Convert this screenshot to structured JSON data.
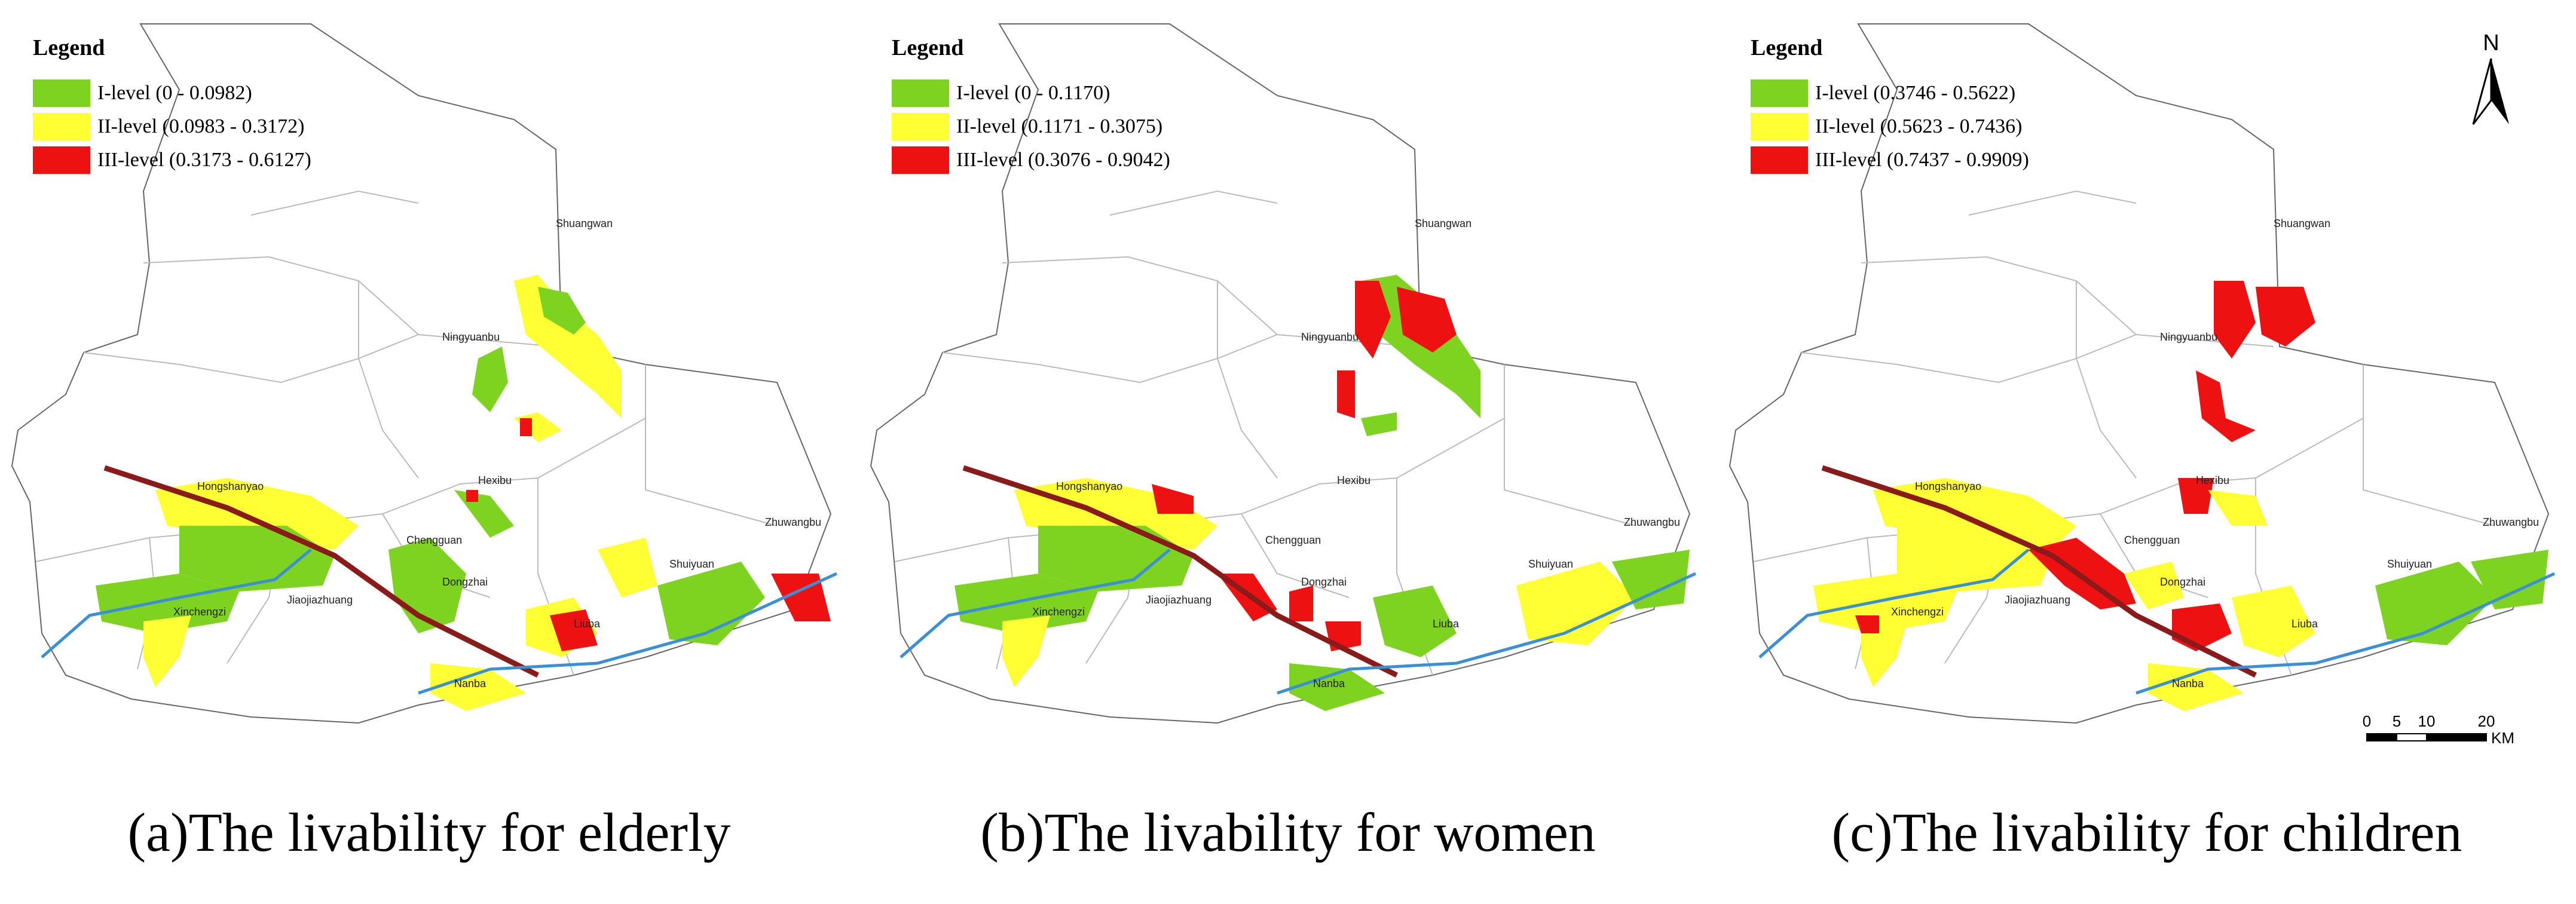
{
  "colors": {
    "level1": "#7ed321",
    "level2": "#ffff33",
    "level3": "#ee1111",
    "road": "#8b1a1a",
    "river": "#3a8fd6",
    "boundary": "#555555"
  },
  "panels": [
    {
      "caption": "(a)The livability for elderly",
      "legend": {
        "title": "Legend",
        "items": [
          {
            "label": "I-level (0 - 0.0982)"
          },
          {
            "label": "II-level (0.0983 - 0.3172)"
          },
          {
            "label": "III-level (0.3173 - 0.6127)"
          }
        ]
      },
      "places": [
        "Shuangwan",
        "Ningyuanbu",
        "Hongshanyao",
        "Hexibu",
        "Chengguan",
        "Dongzhai",
        "Jiaojiazhuang",
        "Xinchengzi",
        "Shuiyuan",
        "Zhuwangbu",
        "Liuba",
        "Nanba"
      ]
    },
    {
      "caption": "(b)The livability for women",
      "legend": {
        "title": "Legend",
        "items": [
          {
            "label": "I-level (0 - 0.1170)"
          },
          {
            "label": "II-level (0.1171 - 0.3075)"
          },
          {
            "label": "III-level (0.3076 - 0.9042)"
          }
        ]
      },
      "places": [
        "Shuangwan",
        "Ningyuanbu",
        "Hongshanyao",
        "Hexibu",
        "Chengguan",
        "Dongzhai",
        "Jiaojiazhuang",
        "Xinchengzi",
        "Shuiyuan",
        "Zhuwangbu",
        "Liuba",
        "Nanba"
      ]
    },
    {
      "caption": "(c)The livability for children",
      "legend": {
        "title": "Legend",
        "items": [
          {
            "label": "I-level (0.3746 - 0.5622)"
          },
          {
            "label": "II-level (0.5623 - 0.7436)"
          },
          {
            "label": "III-level (0.7437 - 0.9909)"
          }
        ]
      },
      "places": [
        "Shuangwan",
        "Ningyuanbu",
        "Hongshanyao",
        "Hexibu",
        "Chengguan",
        "Dongzhai",
        "Jiaojiazhuang",
        "Xinchengzi",
        "Shuiyuan",
        "Zhuwangbu",
        "Liuba",
        "Nanba"
      ]
    }
  ],
  "north_label": "N",
  "scale": {
    "ticks": [
      "0",
      "5",
      "10",
      "20"
    ],
    "unit": "KM"
  }
}
